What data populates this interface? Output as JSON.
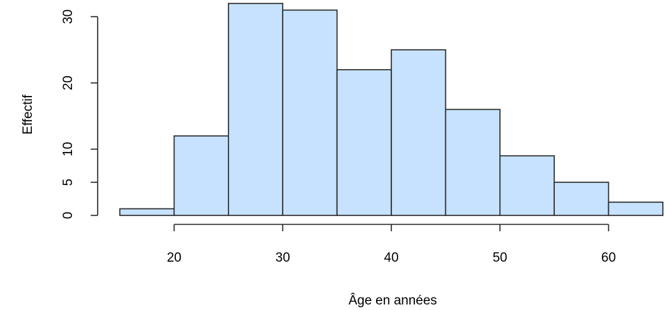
{
  "chart_data": {
    "type": "bar",
    "title": "",
    "xlabel": "Âge en années",
    "ylabel": "Effectif",
    "bins": [
      {
        "from": 15,
        "to": 20,
        "count": 1
      },
      {
        "from": 20,
        "to": 25,
        "count": 12
      },
      {
        "from": 25,
        "to": 30,
        "count": 32
      },
      {
        "from": 30,
        "to": 35,
        "count": 31
      },
      {
        "from": 35,
        "to": 40,
        "count": 22
      },
      {
        "from": 40,
        "to": 45,
        "count": 25
      },
      {
        "from": 45,
        "to": 50,
        "count": 16
      },
      {
        "from": 50,
        "to": 55,
        "count": 9
      },
      {
        "from": 55,
        "to": 60,
        "count": 5
      },
      {
        "from": 60,
        "to": 65,
        "count": 2
      }
    ],
    "xlim": [
      15,
      65
    ],
    "ylim": [
      0,
      32
    ],
    "x_ticks": [
      20,
      30,
      40,
      50,
      60
    ],
    "y_ticks": [
      0,
      5,
      10,
      20,
      30
    ],
    "grid": false,
    "bar_color": "#c6e2ff",
    "border_color": "#2b2b2b"
  }
}
